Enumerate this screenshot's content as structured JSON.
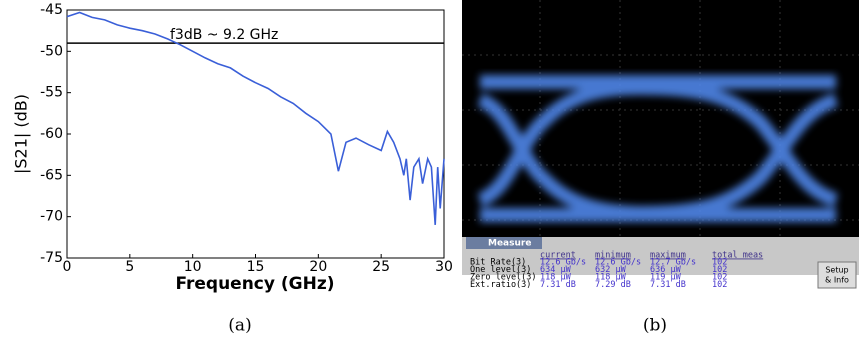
{
  "chart_data": {
    "type": "line",
    "x_label": "Frequency (GHz)",
    "y_label": "|S21| (dB)",
    "annotation": "f3dB ~ 9.2 GHz",
    "reference_line": -49,
    "x": [
      0,
      1,
      2,
      3,
      4,
      5,
      6,
      7,
      8,
      9,
      10,
      11,
      12,
      13,
      14,
      15,
      16,
      17,
      18,
      19,
      20,
      21,
      21.6,
      22.2,
      23,
      24,
      25,
      25.5,
      26,
      26.5,
      26.8,
      27,
      27.3,
      27.6,
      28,
      28.3,
      28.7,
      29,
      29.3,
      29.5,
      29.7,
      30
    ],
    "values": [
      -45.8,
      -45.3,
      -45.9,
      -46.2,
      -46.8,
      -47.2,
      -47.5,
      -47.9,
      -48.5,
      -49.2,
      -50,
      -50.8,
      -51.5,
      -52,
      -53,
      -53.8,
      -54.5,
      -55.5,
      -56.3,
      -57.5,
      -58.5,
      -60,
      -64.5,
      -61,
      -60.5,
      -61.3,
      -62,
      -59.7,
      -61,
      -63,
      -65,
      -63,
      -68,
      -64,
      -63,
      -66,
      -63,
      -64,
      -71,
      -64,
      -69,
      -63
    ],
    "color": "#3a5fd8",
    "xlim": [
      0,
      30
    ],
    "xticks": [
      0,
      5,
      10,
      15,
      20,
      25,
      30
    ],
    "ylim": [
      -75,
      -45
    ],
    "yticks": [
      -45,
      -50,
      -55,
      -60,
      -65,
      -70,
      -75
    ]
  },
  "panel_b": {
    "tab": "Measure",
    "headers": [
      "current",
      "minimum",
      "maximum",
      "total meas"
    ],
    "rows": [
      [
        "Bit Rate(3)",
        "12.6 Gb/s",
        "12.6 Gb/s",
        "12.7 Gb/s",
        "102"
      ],
      [
        "One level(3)",
        "634 µW",
        "632 µW",
        "636 µW",
        "102"
      ],
      [
        "Zero level(3)",
        "118 µW",
        "118 µW",
        "119 µW",
        "102"
      ],
      [
        "Ext.ratio(3)",
        "7.31 dB",
        "7.29 dB",
        "7.31 dB",
        "102"
      ]
    ],
    "button": [
      "Setup",
      "& Info"
    ]
  },
  "captions": [
    "(a)",
    "(b)"
  ]
}
